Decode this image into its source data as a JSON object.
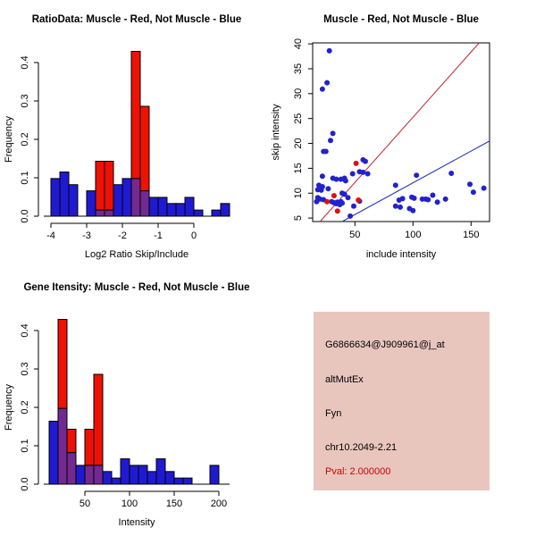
{
  "window_title": "R Graphics Device",
  "colors": {
    "bar_blue": "#1f1ad1",
    "bar_red": "#ee1204",
    "bar_overlap_purple": "#722a90",
    "point_blue": "#2222cc",
    "point_red": "#dd1111",
    "line_red": "#c32330",
    "line_blue": "#2233bb",
    "axis_black": "#000000",
    "info_panel_bg": "#e8c6be",
    "pval_red": "#cc0000",
    "background": "#ffffff"
  },
  "chart_data": [
    {
      "type": "bar",
      "subtype": "overlaid-histogram",
      "title": "RatioData: Muscle - Red, Not Muscle - Blue",
      "xlabel": "Log2 Ratio Skip/Include",
      "ylabel": "Frequency",
      "xlim": [
        -4.2,
        1.0
      ],
      "ylim": [
        0,
        0.43
      ],
      "xticks": [
        -4,
        -3,
        -2,
        -1,
        0
      ],
      "yticks": [
        0.0,
        0.1,
        0.2,
        0.3,
        0.4
      ],
      "grid": false,
      "legend": "none (encoded in title)",
      "bin_width": 0.25,
      "series": [
        {
          "name": "Not Muscle",
          "color_key": "bar_blue",
          "bins_start": -4,
          "values": [
            0.098,
            0.115,
            0.082,
            0,
            0.066,
            0.016,
            0.016,
            0.082,
            0.098,
            0.098,
            0.066,
            0.049,
            0.049,
            0.033,
            0.033,
            0.049,
            0.016,
            0,
            0.016,
            0.033
          ]
        },
        {
          "name": "Muscle",
          "color_key": "bar_red",
          "bins_start": -2.75,
          "values": [
            0.143,
            0.143,
            0,
            0,
            0.429,
            0.286
          ]
        }
      ]
    },
    {
      "type": "scatter",
      "title": "Muscle - Red, Not Muscle - Blue",
      "xlabel": "include intensity",
      "ylabel": "skip intensity",
      "xlim": [
        13.6,
        166
      ],
      "ylim": [
        4.3,
        40.2
      ],
      "xticks": [
        50,
        100,
        150
      ],
      "yticks": [
        5,
        10,
        15,
        20,
        25,
        30,
        35,
        40
      ],
      "grid": false,
      "legend": "none (encoded in title)",
      "series": [
        {
          "name": "Not Muscle",
          "color_key": "point_blue",
          "points": [
            [
              28,
              38.6
            ],
            [
              26,
              32.2
            ],
            [
              22,
              30.9
            ],
            [
              31,
              22
            ],
            [
              29,
              20.6
            ],
            [
              23,
              18.4
            ],
            [
              25,
              18.4
            ],
            [
              57,
              16.7
            ],
            [
              59,
              16.4
            ],
            [
              57,
              14.2
            ],
            [
              61,
              13.9
            ],
            [
              54,
              14.3
            ],
            [
              48,
              13.9
            ],
            [
              22,
              13.4
            ],
            [
              31,
              13
            ],
            [
              34,
              12.8
            ],
            [
              38,
              12.8
            ],
            [
              41,
              13
            ],
            [
              42,
              12.5
            ],
            [
              19,
              11.6
            ],
            [
              22,
              11.3
            ],
            [
              18,
              10.7
            ],
            [
              21,
              10.6
            ],
            [
              27,
              10.9
            ],
            [
              39,
              10
            ],
            [
              41,
              9.8
            ],
            [
              18,
              9.1
            ],
            [
              20,
              8.8
            ],
            [
              23,
              8.7
            ],
            [
              17,
              8.3
            ],
            [
              30,
              8.3
            ],
            [
              32,
              8.1
            ],
            [
              35,
              8.2
            ],
            [
              38,
              8.3
            ],
            [
              34,
              7.9
            ],
            [
              37,
              7.7
            ],
            [
              39,
              8
            ],
            [
              54,
              8.4
            ],
            [
              44,
              9.1
            ],
            [
              49,
              7.4
            ],
            [
              46,
              5.4
            ],
            [
              85,
              11.6
            ],
            [
              103,
              13.6
            ],
            [
              133,
              14
            ],
            [
              88,
              8.6
            ],
            [
              91,
              8.9
            ],
            [
              85,
              7.4
            ],
            [
              89,
              7.2
            ],
            [
              99,
              9.2
            ],
            [
              101,
              9
            ],
            [
              108,
              8.8
            ],
            [
              111,
              8.8
            ],
            [
              113,
              8.7
            ],
            [
              117,
              9.6
            ],
            [
              121,
              8.2
            ],
            [
              128,
              8.8
            ],
            [
              97,
              6.9
            ],
            [
              100,
              6.5
            ],
            [
              149,
              11.8
            ],
            [
              152,
              10.2
            ],
            [
              161,
              11
            ]
          ]
        },
        {
          "name": "Muscle",
          "color_key": "point_red",
          "points": [
            [
              51,
              16
            ],
            [
              32,
              9.5
            ],
            [
              26,
              8.3
            ],
            [
              53,
              8.6
            ],
            [
              35,
              6.4
            ]
          ]
        }
      ],
      "lines": [
        {
          "name": "muscle-fit-line",
          "color_key": "line_red",
          "x1": 20,
          "y1": 4.3,
          "x2": 157,
          "y2": 40.2
        },
        {
          "name": "not-muscle-fit-line",
          "color_key": "line_blue",
          "x1": 39,
          "y1": 4.3,
          "x2": 166,
          "y2": 20.5
        }
      ]
    },
    {
      "type": "bar",
      "subtype": "overlaid-histogram",
      "title": "Gene Itensity: Muscle - Red, Not Muscle - Blue",
      "xlabel": "Intensity",
      "ylabel": "Frequency",
      "xlim": [
        4,
        212
      ],
      "ylim": [
        0,
        0.43
      ],
      "xticks": [
        50,
        100,
        150,
        200
      ],
      "yticks": [
        0.0,
        0.1,
        0.2,
        0.3,
        0.4
      ],
      "grid": false,
      "legend": "none (encoded in title)",
      "bin_width": 10,
      "series": [
        {
          "name": "Not Muscle",
          "color_key": "bar_blue",
          "bins_start": 10,
          "values": [
            0.164,
            0.197,
            0.082,
            0.049,
            0.049,
            0.049,
            0.033,
            0.016,
            0.066,
            0.049,
            0.049,
            0.033,
            0.066,
            0.033,
            0.016,
            0.016,
            0,
            0,
            0.049
          ]
        },
        {
          "name": "Muscle",
          "color_key": "bar_red",
          "bins_start": 20,
          "values": [
            0.429,
            0.143,
            0,
            0.143,
            0.286
          ]
        }
      ]
    }
  ],
  "info": {
    "probeset_id": "G6866634@J909961@j_at",
    "event_type": "altMutEx",
    "gene_name": "Fyn",
    "location": "chr10.2049-2.21",
    "pval_text": "Pval: 2.000000"
  }
}
